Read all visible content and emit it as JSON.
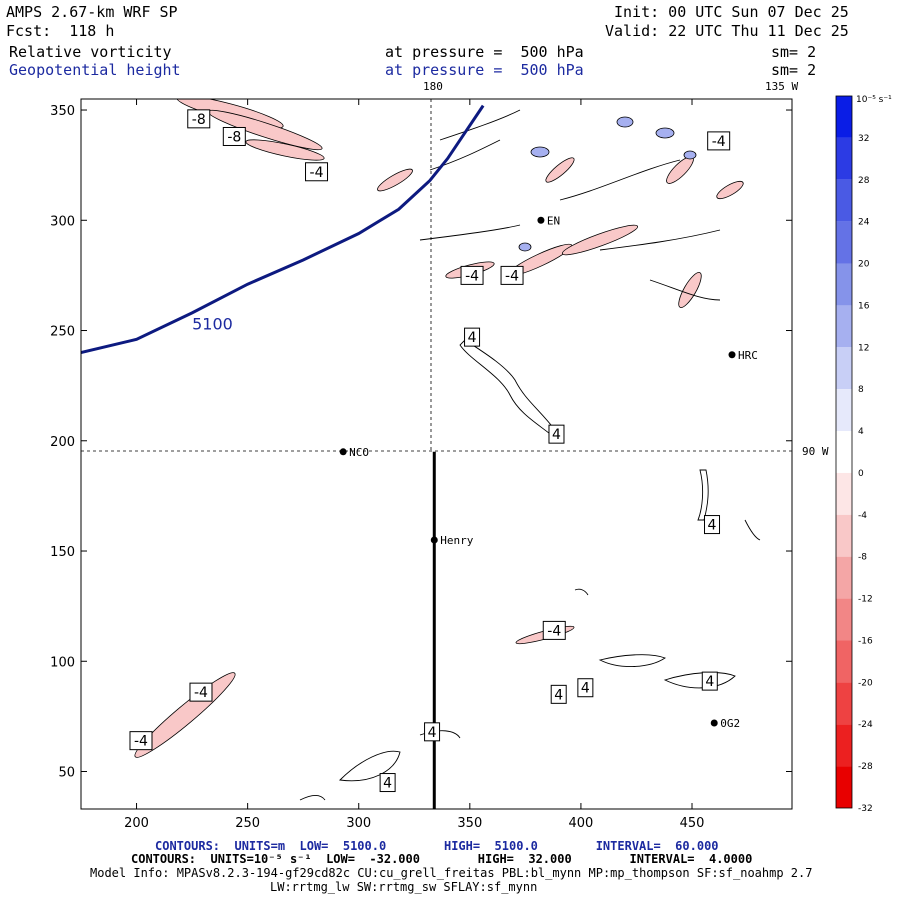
{
  "header": {
    "model": "AMPS 2.67-km WRF SP",
    "forecast": "Fcst:  118 h",
    "init": "Init: 00 UTC Sun 07 Dec 25",
    "valid": "Valid: 22 UTC Thu 11 Dec 25",
    "field1_name": "Relative vorticity",
    "field1_level": "at pressure =  500 hPa",
    "field1_smooth": "sm= 2",
    "field2_name": "Geopotential height",
    "field2_level": "at pressure =  500 hPa",
    "field2_smooth": "sm= 2"
  },
  "map_labels": {
    "lon_180": "180",
    "lon_135w": "135 W",
    "lat_90w": "90 W",
    "stations": [
      {
        "name": "NCO",
        "x": 293,
        "y": 195
      },
      {
        "name": "Henry",
        "x": 334,
        "y": 155
      },
      {
        "name": "HRC",
        "x": 468,
        "y": 239
      },
      {
        "name": "0G2",
        "x": 460,
        "y": 72
      },
      {
        "name": "EN",
        "x": 382,
        "y": 300
      }
    ]
  },
  "chart_data": {
    "type": "contour",
    "xlim": [
      175,
      495
    ],
    "ylim": [
      33,
      355
    ],
    "xticks": [
      200,
      250,
      300,
      350,
      400,
      450
    ],
    "yticks": [
      50,
      100,
      150,
      200,
      250,
      300,
      350
    ],
    "height_contour": {
      "label": "5100",
      "points": [
        [
          175,
          240
        ],
        [
          200,
          246
        ],
        [
          225,
          258
        ],
        [
          250,
          271
        ],
        [
          275,
          282
        ],
        [
          300,
          294
        ],
        [
          318,
          305
        ],
        [
          332,
          318
        ],
        [
          340,
          328
        ],
        [
          348,
          340
        ],
        [
          356,
          352
        ]
      ]
    },
    "cross_section_line": {
      "x": 334,
      "y_start": 33,
      "y_end": 195
    },
    "vorticity_labels": [
      {
        "text": "-8",
        "x": 228,
        "y": 346
      },
      {
        "text": "-8",
        "x": 244,
        "y": 338
      },
      {
        "text": "-4",
        "x": 281,
        "y": 322
      },
      {
        "text": "-4",
        "x": 351,
        "y": 275
      },
      {
        "text": "-4",
        "x": 369,
        "y": 275
      },
      {
        "text": "-4",
        "x": 462,
        "y": 336
      },
      {
        "text": "4",
        "x": 351,
        "y": 247
      },
      {
        "text": "4",
        "x": 389,
        "y": 203
      },
      {
        "text": "4",
        "x": 459,
        "y": 162
      },
      {
        "text": "-4",
        "x": 388,
        "y": 114
      },
      {
        "text": "4",
        "x": 390,
        "y": 85
      },
      {
        "text": "4",
        "x": 402,
        "y": 88
      },
      {
        "text": "4",
        "x": 458,
        "y": 91
      },
      {
        "text": "-4",
        "x": 229,
        "y": 86
      },
      {
        "text": "-4",
        "x": 202,
        "y": 64
      },
      {
        "text": "4",
        "x": 333,
        "y": 68
      },
      {
        "text": "4",
        "x": 313,
        "y": 45
      }
    ]
  },
  "colorbar": {
    "unit_label": "10⁻⁵ s⁻¹",
    "ticks": [
      "32",
      "28",
      "24",
      "20",
      "16",
      "12",
      "8",
      "4",
      "0",
      "-4",
      "-8",
      "-12",
      "-16",
      "-20",
      "-24",
      "-28",
      "-32"
    ],
    "colors": [
      "#0a1de6",
      "#2c3be4",
      "#4a5ae4",
      "#6472e6",
      "#8593ea",
      "#a6b0f0",
      "#c8cff6",
      "#e6e9fb",
      "#ffffff",
      "#fde6e6",
      "#f9c8c8",
      "#f4a6a6",
      "#f28686",
      "#f06464",
      "#ee4242",
      "#ec2020",
      "#e80000"
    ]
  },
  "footer": {
    "line1": "CONTOURS:  UNITS=m  LOW=  5100.0        HIGH=  5100.0        INTERVAL=  60.000",
    "line2": "CONTOURS:  UNITS=10⁻⁵ s⁻¹  LOW=  -32.000        HIGH=  32.000        INTERVAL=  4.0000",
    "line3": "Model Info: MPASv8.2.3-194-gf29cd82c CU:cu_grell_freitas PBL:bl_mynn MP:mp_thompson SF:sf_noahmp 2.7",
    "line4": "LW:rrtmg_lw SW:rrtmg_sw SFLAY:sf_mynn"
  }
}
